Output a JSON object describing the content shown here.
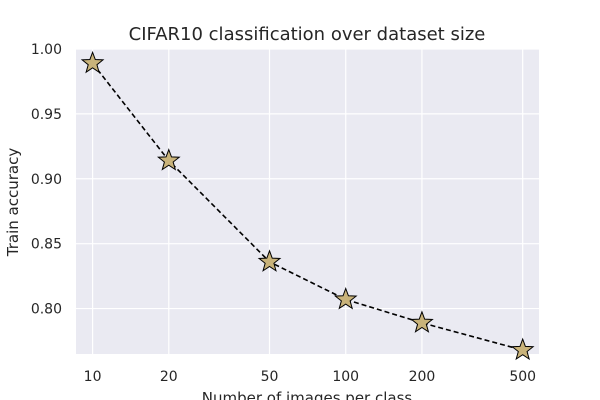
{
  "chart_data": {
    "type": "line",
    "title": "CIFAR10 classification over dataset size",
    "xlabel": "Number of images per class",
    "ylabel": "Train accuracy",
    "x_scale": "log",
    "x": [
      10,
      20,
      50,
      100,
      200,
      500
    ],
    "x_tick_labels": [
      "10",
      "20",
      "50",
      "100",
      "200",
      "500"
    ],
    "y_ticks": [
      0.8,
      0.85,
      0.9,
      0.95,
      1.0
    ],
    "y_tick_labels": [
      "0.80",
      "0.85",
      "0.90",
      "0.95",
      "1.00"
    ],
    "ylim": [
      0.765,
      1.0
    ],
    "grid": true,
    "series": [
      {
        "values": [
          0.989,
          0.914,
          0.836,
          0.807,
          0.789,
          0.768
        ],
        "line_style": "dashed",
        "line_color": "#000000",
        "marker": "star",
        "marker_color": "#c9b37a",
        "marker_edge_color": "#000000"
      }
    ],
    "colors": {
      "plot_background": "#eaeaf2",
      "grid": "#ffffff",
      "text": "#262626"
    }
  }
}
